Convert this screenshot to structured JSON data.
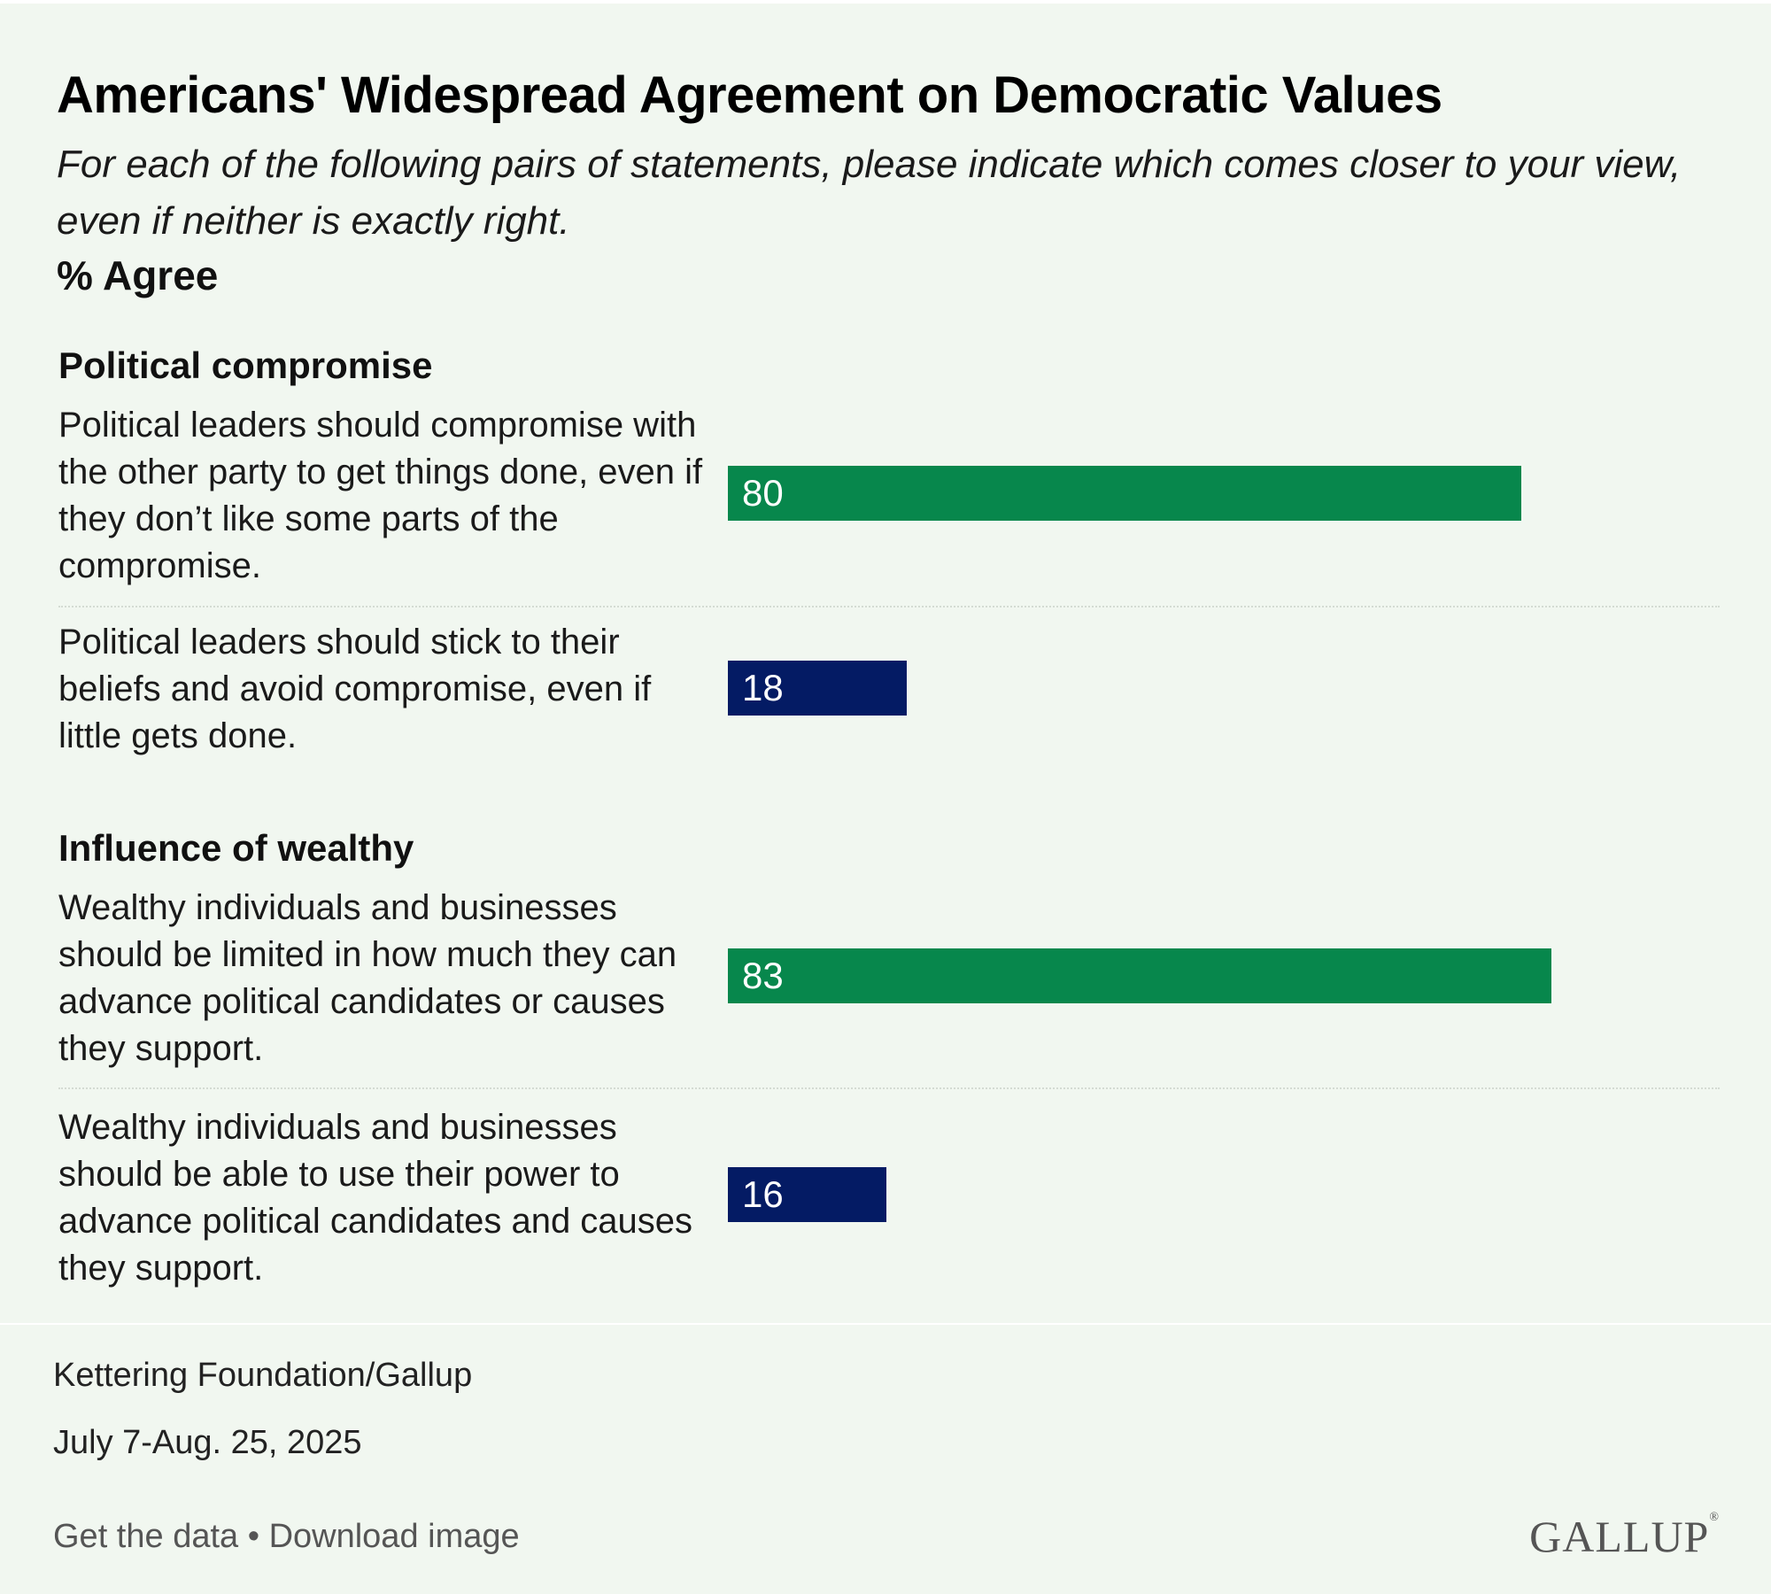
{
  "colors": {
    "background": "#f1f7f0",
    "agree_primary": "#07874c",
    "agree_secondary": "#041b64"
  },
  "chart_data": {
    "type": "bar",
    "orientation": "horizontal",
    "title": "Americans' Widespread Agreement on Democratic Values",
    "subtitle": "For each of the following pairs of statements, please indicate which comes closer to your view, even if neither is exactly right.",
    "unit_label": "% Agree",
    "xlim": [
      0,
      100
    ],
    "groups": [
      {
        "title": "Political compromise",
        "items": [
          {
            "statement": "Political leaders should compromise with the other party to get things done, even if they don’t like some parts of the compromise.",
            "value": 80,
            "color": "#07874c"
          },
          {
            "statement": "Political leaders should stick to their beliefs and avoid compromise, even if little gets done.",
            "value": 18,
            "color": "#041b64"
          }
        ]
      },
      {
        "title": "Influence of wealthy",
        "items": [
          {
            "statement": "Wealthy individuals and businesses should be limited in how much they can advance political candidates or causes they support.",
            "value": 83,
            "color": "#07874c"
          },
          {
            "statement": "Wealthy individuals and businesses should be able to use their power to advance political candidates and causes they support.",
            "value": 16,
            "color": "#041b64"
          }
        ]
      }
    ]
  },
  "source": "Kettering Foundation/Gallup",
  "dates": "July 7-Aug. 25, 2025",
  "footer": {
    "get_data": "Get the data",
    "separator": " • ",
    "download": "Download image",
    "logo": "GALLUP"
  }
}
